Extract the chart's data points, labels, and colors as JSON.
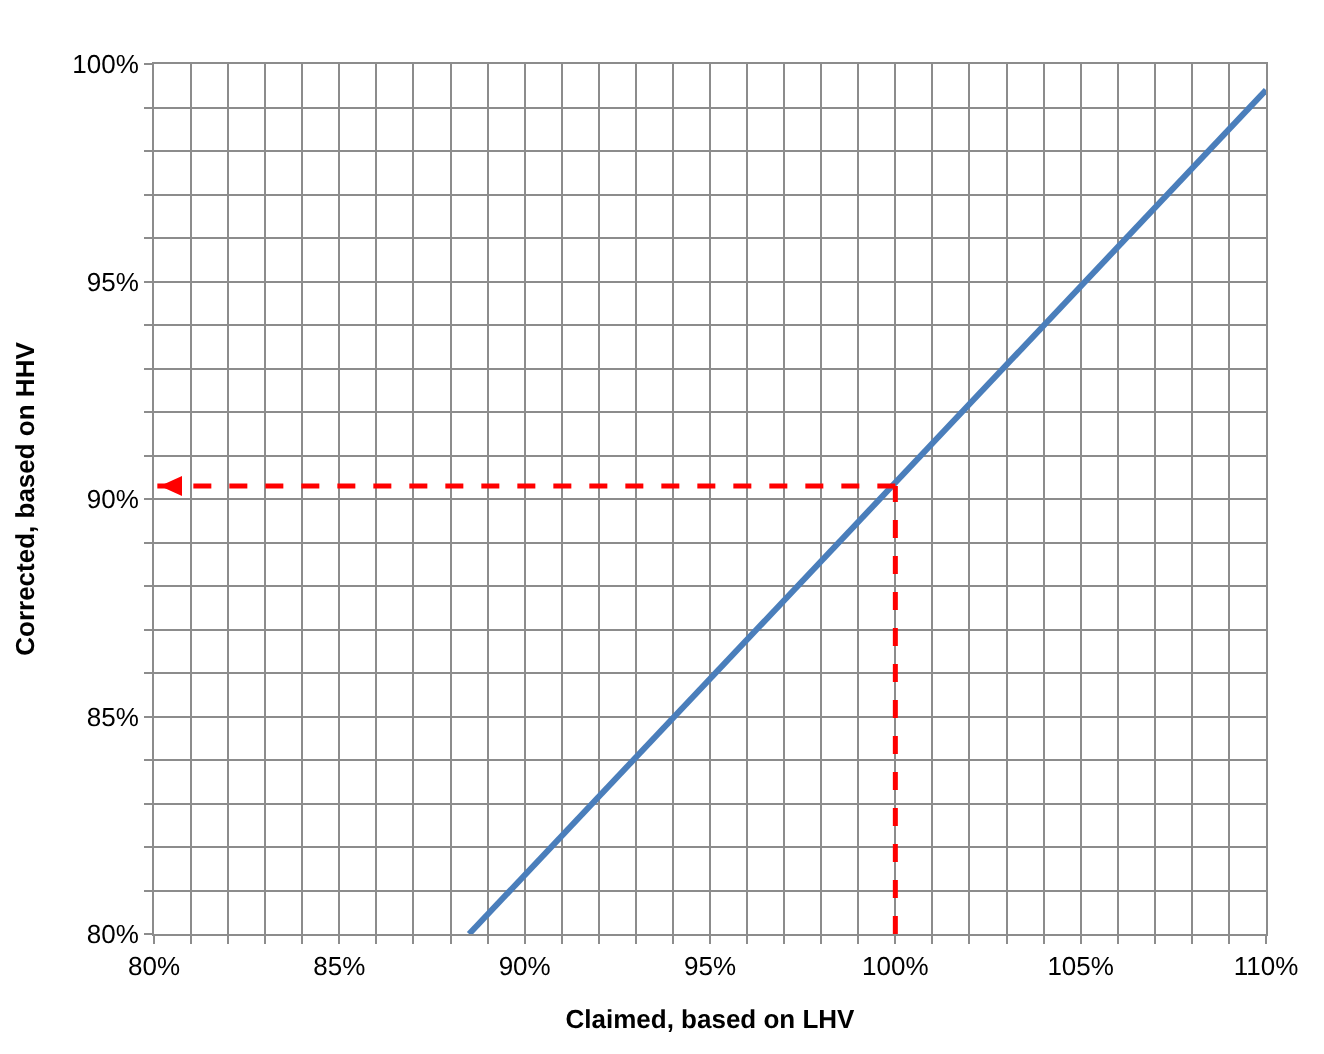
{
  "chart_data": {
    "type": "line",
    "xlabel": "Claimed, based on LHV",
    "ylabel": "Corrected, based on HHV",
    "xlim": [
      80,
      110
    ],
    "ylim": [
      80,
      100
    ],
    "xticks": [
      {
        "value": 80,
        "label": "80%"
      },
      {
        "value": 81,
        "label": null
      },
      {
        "value": 82,
        "label": null
      },
      {
        "value": 83,
        "label": null
      },
      {
        "value": 84,
        "label": null
      },
      {
        "value": 85,
        "label": "85%"
      },
      {
        "value": 86,
        "label": null
      },
      {
        "value": 87,
        "label": null
      },
      {
        "value": 88,
        "label": null
      },
      {
        "value": 89,
        "label": null
      },
      {
        "value": 90,
        "label": "90%"
      },
      {
        "value": 91,
        "label": null
      },
      {
        "value": 92,
        "label": null
      },
      {
        "value": 93,
        "label": null
      },
      {
        "value": 94,
        "label": null
      },
      {
        "value": 95,
        "label": "95%"
      },
      {
        "value": 96,
        "label": null
      },
      {
        "value": 97,
        "label": null
      },
      {
        "value": 98,
        "label": null
      },
      {
        "value": 99,
        "label": null
      },
      {
        "value": 100,
        "label": "100%"
      },
      {
        "value": 101,
        "label": null
      },
      {
        "value": 102,
        "label": null
      },
      {
        "value": 103,
        "label": null
      },
      {
        "value": 104,
        "label": null
      },
      {
        "value": 105,
        "label": "105%"
      },
      {
        "value": 106,
        "label": null
      },
      {
        "value": 107,
        "label": null
      },
      {
        "value": 108,
        "label": null
      },
      {
        "value": 109,
        "label": null
      },
      {
        "value": 110,
        "label": "110%"
      }
    ],
    "yticks": [
      {
        "value": 80,
        "label": "80%"
      },
      {
        "value": 81,
        "label": null
      },
      {
        "value": 82,
        "label": null
      },
      {
        "value": 83,
        "label": null
      },
      {
        "value": 84,
        "label": null
      },
      {
        "value": 85,
        "label": "85%"
      },
      {
        "value": 86,
        "label": null
      },
      {
        "value": 87,
        "label": null
      },
      {
        "value": 88,
        "label": null
      },
      {
        "value": 89,
        "label": null
      },
      {
        "value": 90,
        "label": "90%"
      },
      {
        "value": 91,
        "label": null
      },
      {
        "value": 92,
        "label": null
      },
      {
        "value": 93,
        "label": null
      },
      {
        "value": 94,
        "label": null
      },
      {
        "value": 95,
        "label": "95%"
      },
      {
        "value": 96,
        "label": null
      },
      {
        "value": 97,
        "label": null
      },
      {
        "value": 98,
        "label": null
      },
      {
        "value": 99,
        "label": null
      },
      {
        "value": 100,
        "label": "100%"
      }
    ],
    "grid": true,
    "marker": "none",
    "series": [
      {
        "color": "#4a7ebb",
        "x": [
          88.5,
          110
        ],
        "values": [
          80,
          99.4
        ],
        "line_style": "solid"
      }
    ],
    "ref_lines": [
      {
        "axis": "x",
        "value": 100,
        "color": "#ff0000",
        "line_style": "dashed"
      },
      {
        "axis": "y",
        "value": 90.3,
        "color": "#ff0000",
        "line_style": "dashed"
      }
    ]
  }
}
